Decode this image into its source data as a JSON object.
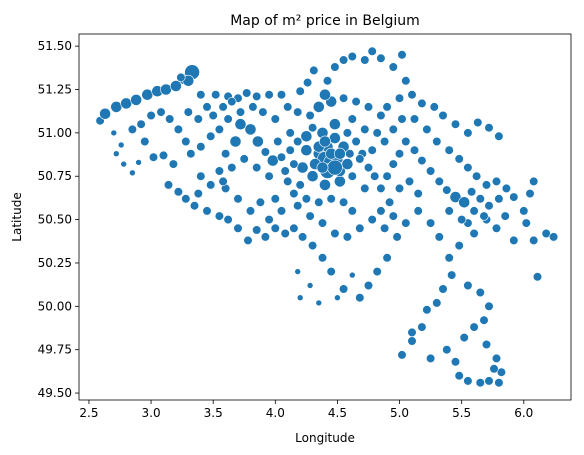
{
  "chart_data": {
    "type": "scatter",
    "title": "Map of m² price in Belgium",
    "xlabel": "Longitude",
    "ylabel": "Latitude",
    "xlim": [
      2.42,
      6.38
    ],
    "ylim": [
      49.46,
      51.57
    ],
    "xticks": [
      2.5,
      3.0,
      3.5,
      4.0,
      4.5,
      5.0,
      5.5,
      6.0
    ],
    "xtick_labels": [
      "2.5",
      "3.0",
      "3.5",
      "4.0",
      "4.5",
      "5.0",
      "5.5",
      "6.0"
    ],
    "yticks": [
      49.5,
      49.75,
      50.0,
      50.25,
      50.5,
      50.75,
      51.0,
      51.25,
      51.5
    ],
    "ytick_labels": [
      "49.50",
      "49.75",
      "50.00",
      "50.25",
      "50.50",
      "50.75",
      "51.00",
      "51.25",
      "51.50"
    ],
    "grid": false,
    "marker_color": "#1f77b4",
    "points": [
      [
        2.59,
        51.07,
        2
      ],
      [
        2.63,
        51.11,
        3
      ],
      [
        2.72,
        51.15,
        3
      ],
      [
        2.8,
        51.17,
        3
      ],
      [
        2.88,
        51.19,
        3
      ],
      [
        2.97,
        51.22,
        3
      ],
      [
        3.05,
        51.24,
        3
      ],
      [
        3.12,
        51.25,
        3
      ],
      [
        3.2,
        51.27,
        3
      ],
      [
        3.27,
        51.31,
        3
      ],
      [
        3.33,
        51.35,
        4
      ],
      [
        3.3,
        51.3,
        3
      ],
      [
        3.24,
        51.32,
        2
      ],
      [
        3.4,
        51.22,
        2
      ],
      [
        3.52,
        51.22,
        2
      ],
      [
        3.62,
        51.21,
        2
      ],
      [
        3.7,
        51.2,
        2
      ],
      [
        3.77,
        51.23,
        2
      ],
      [
        3.85,
        51.21,
        2
      ],
      [
        3.95,
        51.22,
        2
      ],
      [
        4.05,
        51.22,
        2
      ],
      [
        4.2,
        51.24,
        2
      ],
      [
        4.26,
        51.29,
        2
      ],
      [
        4.31,
        51.36,
        2
      ],
      [
        4.42,
        51.3,
        2
      ],
      [
        4.48,
        51.38,
        2
      ],
      [
        4.55,
        51.42,
        2
      ],
      [
        4.62,
        51.44,
        2
      ],
      [
        4.72,
        51.42,
        2
      ],
      [
        4.78,
        51.47,
        2
      ],
      [
        4.85,
        51.43,
        2
      ],
      [
        4.95,
        51.38,
        2
      ],
      [
        5.02,
        51.45,
        2
      ],
      [
        5.05,
        51.3,
        2
      ],
      [
        5.1,
        51.22,
        2
      ],
      [
        5.18,
        51.17,
        2
      ],
      [
        5.28,
        51.15,
        2
      ],
      [
        5.35,
        51.1,
        2
      ],
      [
        5.45,
        51.05,
        2
      ],
      [
        5.55,
        51.0,
        2
      ],
      [
        5.63,
        51.06,
        2
      ],
      [
        5.72,
        51.03,
        2
      ],
      [
        5.8,
        50.98,
        2
      ],
      [
        2.7,
        51.0,
        1
      ],
      [
        2.76,
        50.93,
        1
      ],
      [
        2.78,
        50.82,
        1
      ],
      [
        2.85,
        50.77,
        1
      ],
      [
        2.72,
        50.88,
        1
      ],
      [
        2.9,
        50.83,
        1
      ],
      [
        2.95,
        50.95,
        2
      ],
      [
        3.02,
        50.86,
        2
      ],
      [
        3.1,
        50.87,
        2
      ],
      [
        3.18,
        50.82,
        2
      ],
      [
        3.14,
        50.7,
        2
      ],
      [
        3.22,
        50.66,
        2
      ],
      [
        3.28,
        50.62,
        2
      ],
      [
        3.35,
        50.58,
        2
      ],
      [
        3.38,
        50.65,
        2
      ],
      [
        3.4,
        50.75,
        2
      ],
      [
        3.48,
        50.7,
        2
      ],
      [
        3.55,
        50.78,
        2
      ],
      [
        3.6,
        50.88,
        2
      ],
      [
        3.68,
        50.95,
        3
      ],
      [
        3.72,
        51.05,
        3
      ],
      [
        3.8,
        51.02,
        3
      ],
      [
        3.86,
        50.95,
        3
      ],
      [
        3.92,
        50.89,
        2
      ],
      [
        3.98,
        50.84,
        3
      ],
      [
        4.05,
        50.86,
        2
      ],
      [
        4.12,
        50.9,
        2
      ],
      [
        4.18,
        50.95,
        2
      ],
      [
        4.25,
        50.98,
        3
      ],
      [
        4.3,
        51.03,
        2
      ],
      [
        4.35,
        50.88,
        3
      ],
      [
        4.4,
        50.85,
        4
      ],
      [
        4.45,
        50.83,
        4
      ],
      [
        4.5,
        50.85,
        3
      ],
      [
        4.42,
        50.92,
        3
      ],
      [
        4.48,
        50.97,
        3
      ],
      [
        4.55,
        50.92,
        3
      ],
      [
        4.6,
        50.88,
        2
      ],
      [
        4.65,
        50.95,
        2
      ],
      [
        4.7,
        50.88,
        2
      ],
      [
        4.75,
        50.8,
        2
      ],
      [
        4.8,
        50.75,
        2
      ],
      [
        4.85,
        50.68,
        2
      ],
      [
        4.9,
        50.75,
        2
      ],
      [
        4.95,
        50.82,
        2
      ],
      [
        5.0,
        50.88,
        2
      ],
      [
        5.05,
        50.95,
        2
      ],
      [
        5.12,
        50.9,
        2
      ],
      [
        5.18,
        50.84,
        2
      ],
      [
        5.25,
        50.78,
        2
      ],
      [
        5.32,
        50.72,
        2
      ],
      [
        5.38,
        50.67,
        2
      ],
      [
        5.45,
        50.63,
        3
      ],
      [
        5.52,
        50.6,
        3
      ],
      [
        5.58,
        50.66,
        2
      ],
      [
        5.65,
        50.62,
        2
      ],
      [
        5.72,
        50.58,
        2
      ],
      [
        5.8,
        50.62,
        2
      ],
      [
        5.86,
        50.68,
        2
      ],
      [
        5.92,
        50.63,
        2
      ],
      [
        6.0,
        50.55,
        2
      ],
      [
        6.05,
        50.65,
        2
      ],
      [
        6.08,
        50.72,
        2
      ],
      [
        6.02,
        50.48,
        2
      ],
      [
        6.08,
        50.38,
        2
      ],
      [
        6.18,
        50.42,
        2
      ],
      [
        6.24,
        50.4,
        2
      ],
      [
        6.11,
        50.17,
        2
      ],
      [
        5.92,
        50.38,
        2
      ],
      [
        5.78,
        50.45,
        2
      ],
      [
        5.85,
        50.52,
        2
      ],
      [
        5.7,
        50.5,
        2
      ],
      [
        5.6,
        50.42,
        2
      ],
      [
        5.55,
        50.48,
        2
      ],
      [
        5.48,
        50.35,
        2
      ],
      [
        5.4,
        50.28,
        2
      ],
      [
        5.42,
        50.18,
        2
      ],
      [
        5.35,
        50.1,
        2
      ],
      [
        5.3,
        50.02,
        2
      ],
      [
        5.22,
        49.98,
        2
      ],
      [
        5.18,
        49.88,
        2
      ],
      [
        5.1,
        49.8,
        2
      ],
      [
        5.02,
        49.72,
        2
      ],
      [
        5.1,
        49.85,
        2
      ],
      [
        5.25,
        49.7,
        2
      ],
      [
        5.38,
        49.75,
        2
      ],
      [
        5.45,
        49.68,
        2
      ],
      [
        5.52,
        49.82,
        2
      ],
      [
        5.6,
        49.88,
        2
      ],
      [
        5.68,
        49.92,
        2
      ],
      [
        5.72,
        50.0,
        2
      ],
      [
        5.65,
        50.08,
        2
      ],
      [
        5.55,
        50.12,
        2
      ],
      [
        5.48,
        49.6,
        2
      ],
      [
        5.55,
        49.57,
        2
      ],
      [
        5.65,
        49.56,
        2
      ],
      [
        5.72,
        49.57,
        2
      ],
      [
        5.8,
        49.56,
        2
      ],
      [
        5.82,
        49.62,
        2
      ],
      [
        5.78,
        49.7,
        2
      ],
      [
        5.7,
        49.78,
        2
      ],
      [
        5.76,
        49.64,
        2
      ],
      [
        4.9,
        50.28,
        2
      ],
      [
        4.82,
        50.2,
        2
      ],
      [
        4.75,
        50.12,
        2
      ],
      [
        4.68,
        50.05,
        2
      ],
      [
        4.55,
        50.1,
        2
      ],
      [
        4.45,
        50.2,
        2
      ],
      [
        4.38,
        50.28,
        2
      ],
      [
        4.3,
        50.35,
        2
      ],
      [
        4.22,
        50.4,
        2
      ],
      [
        4.15,
        50.45,
        2
      ],
      [
        4.08,
        50.42,
        2
      ],
      [
        4.0,
        50.45,
        2
      ],
      [
        3.92,
        50.4,
        2
      ],
      [
        3.85,
        50.44,
        2
      ],
      [
        3.78,
        50.38,
        2
      ],
      [
        3.7,
        50.45,
        2
      ],
      [
        3.62,
        50.5,
        2
      ],
      [
        3.55,
        50.52,
        2
      ],
      [
        3.45,
        50.55,
        2
      ],
      [
        3.95,
        50.5,
        2
      ],
      [
        4.05,
        50.55,
        2
      ],
      [
        4.18,
        50.58,
        2
      ],
      [
        4.28,
        50.52,
        2
      ],
      [
        4.38,
        50.48,
        2
      ],
      [
        4.48,
        50.42,
        2
      ],
      [
        4.58,
        50.4,
        2
      ],
      [
        4.68,
        50.45,
        2
      ],
      [
        4.78,
        50.5,
        2
      ],
      [
        4.88,
        50.45,
        2
      ],
      [
        4.98,
        50.4,
        2
      ],
      [
        5.05,
        50.48,
        2
      ],
      [
        5.15,
        50.55,
        2
      ],
      [
        5.25,
        50.48,
        2
      ],
      [
        5.32,
        50.4,
        2
      ],
      [
        4.18,
        50.2,
        1
      ],
      [
        4.2,
        50.05,
        1
      ],
      [
        4.28,
        50.12,
        1
      ],
      [
        4.35,
        50.02,
        1
      ],
      [
        4.5,
        50.05,
        1
      ],
      [
        4.62,
        50.18,
        1
      ],
      [
        4.0,
        50.62,
        2
      ],
      [
        3.88,
        50.6,
        2
      ],
      [
        3.8,
        50.55,
        2
      ],
      [
        3.7,
        50.62,
        2
      ],
      [
        3.6,
        50.68,
        2
      ],
      [
        4.1,
        50.72,
        2
      ],
      [
        4.2,
        50.7,
        2
      ],
      [
        4.3,
        50.75,
        3
      ],
      [
        4.4,
        50.7,
        3
      ],
      [
        4.52,
        50.72,
        3
      ],
      [
        4.62,
        50.75,
        2
      ],
      [
        4.72,
        50.68,
        2
      ],
      [
        4.22,
        50.8,
        3
      ],
      [
        4.32,
        50.82,
        3
      ],
      [
        4.52,
        50.78,
        3
      ],
      [
        4.58,
        50.82,
        3
      ],
      [
        4.68,
        50.85,
        2
      ],
      [
        4.78,
        50.9,
        2
      ],
      [
        4.88,
        50.95,
        2
      ],
      [
        4.95,
        51.02,
        2
      ],
      [
        5.02,
        51.08,
        2
      ],
      [
        4.85,
        51.1,
        2
      ],
      [
        4.75,
        51.15,
        2
      ],
      [
        4.65,
        51.18,
        2
      ],
      [
        4.55,
        51.2,
        2
      ],
      [
        4.45,
        51.18,
        3
      ],
      [
        4.4,
        51.22,
        3
      ],
      [
        4.35,
        51.15,
        3
      ],
      [
        4.28,
        51.1,
        2
      ],
      [
        4.18,
        51.12,
        2
      ],
      [
        4.1,
        51.15,
        2
      ],
      [
        4.0,
        51.08,
        2
      ],
      [
        3.9,
        51.12,
        2
      ],
      [
        3.82,
        51.15,
        2
      ],
      [
        3.72,
        51.12,
        2
      ],
      [
        3.62,
        51.08,
        2
      ],
      [
        3.55,
        51.02,
        2
      ],
      [
        3.48,
        50.98,
        2
      ],
      [
        3.4,
        50.92,
        2
      ],
      [
        3.32,
        50.88,
        2
      ],
      [
        3.28,
        50.95,
        2
      ],
      [
        3.22,
        51.02,
        2
      ],
      [
        3.15,
        51.08,
        2
      ],
      [
        3.08,
        51.12,
        2
      ],
      [
        3.0,
        51.1,
        2
      ],
      [
        2.92,
        51.05,
        2
      ],
      [
        2.85,
        51.02,
        2
      ],
      [
        3.5,
        51.1,
        2
      ],
      [
        3.58,
        51.15,
        2
      ],
      [
        3.65,
        51.18,
        2
      ],
      [
        3.45,
        51.15,
        2
      ],
      [
        3.38,
        51.08,
        2
      ],
      [
        3.3,
        51.12,
        2
      ],
      [
        4.02,
        50.95,
        2
      ],
      [
        4.12,
        51.0,
        2
      ],
      [
        4.62,
        51.08,
        2
      ],
      [
        4.72,
        51.02,
        2
      ],
      [
        4.82,
        51.0,
        2
      ],
      [
        4.9,
        51.15,
        2
      ],
      [
        5.0,
        51.2,
        2
      ],
      [
        5.12,
        51.08,
        2
      ],
      [
        5.22,
        51.02,
        2
      ],
      [
        5.3,
        50.95,
        2
      ],
      [
        5.4,
        50.9,
        2
      ],
      [
        5.48,
        50.85,
        2
      ],
      [
        5.55,
        50.8,
        2
      ],
      [
        5.62,
        50.75,
        2
      ],
      [
        5.7,
        50.7,
        2
      ],
      [
        5.78,
        50.72,
        2
      ],
      [
        5.4,
        50.55,
        2
      ],
      [
        5.5,
        50.5,
        2
      ],
      [
        5.6,
        50.55,
        2
      ],
      [
        5.68,
        50.52,
        2
      ],
      [
        5.15,
        50.65,
        2
      ],
      [
        5.08,
        50.72,
        2
      ],
      [
        5.0,
        50.68,
        2
      ],
      [
        4.92,
        50.6,
        2
      ],
      [
        4.85,
        50.55,
        2
      ],
      [
        4.95,
        50.52,
        2
      ],
      [
        4.62,
        50.55,
        2
      ],
      [
        4.55,
        50.6,
        2
      ],
      [
        4.45,
        50.62,
        2
      ],
      [
        4.35,
        50.6,
        2
      ],
      [
        4.25,
        50.62,
        2
      ],
      [
        4.15,
        50.65,
        2
      ],
      [
        4.48,
        51.05,
        3
      ],
      [
        4.38,
        51.0,
        3
      ],
      [
        4.58,
        51.0,
        2
      ],
      [
        4.25,
        50.9,
        3
      ],
      [
        4.15,
        50.82,
        2
      ],
      [
        4.08,
        50.78,
        2
      ],
      [
        3.95,
        50.75,
        2
      ],
      [
        3.85,
        50.8,
        2
      ],
      [
        3.75,
        50.85,
        2
      ],
      [
        3.65,
        50.8,
        2
      ],
      [
        3.58,
        50.72,
        2
      ],
      [
        4.42,
        50.78,
        4
      ],
      [
        4.48,
        50.8,
        4
      ],
      [
        4.38,
        50.8,
        3
      ],
      [
        4.35,
        50.92,
        3
      ],
      [
        4.45,
        50.88,
        3
      ],
      [
        4.52,
        50.88,
        3
      ],
      [
        4.4,
        50.95,
        3
      ]
    ]
  }
}
